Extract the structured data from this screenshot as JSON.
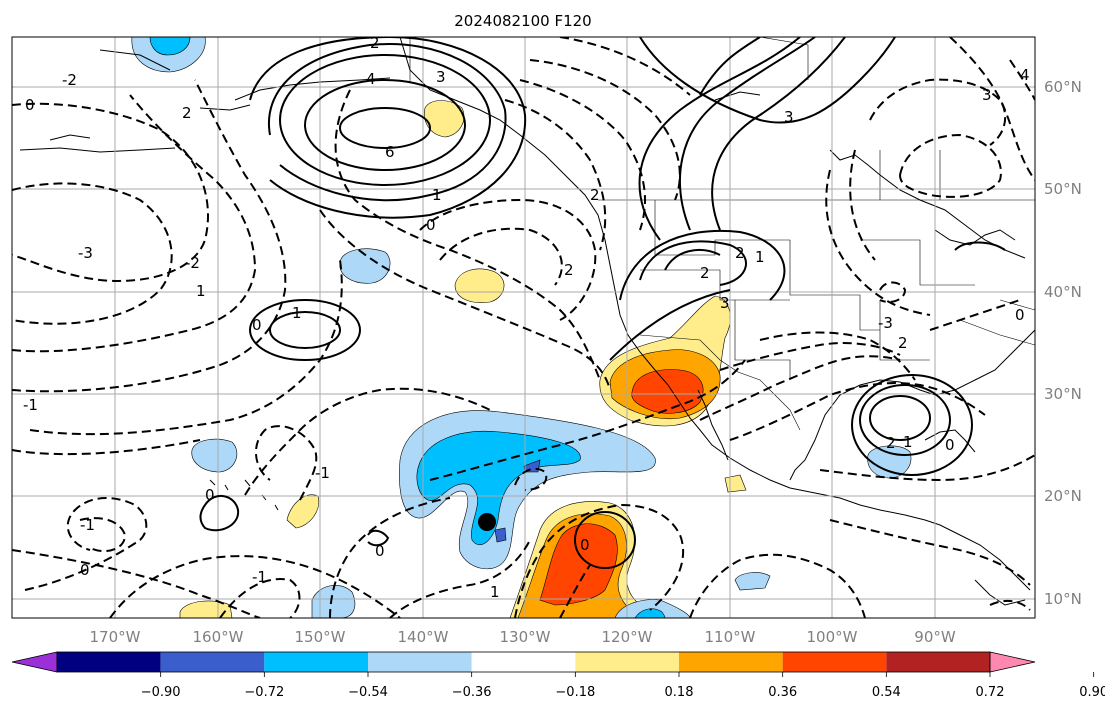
{
  "title": "2024082100 F120",
  "lon_labels": [
    "170°W",
    "160°W",
    "150°W",
    "140°W",
    "130°W",
    "120°W",
    "110°W",
    "100°W",
    "90°W"
  ],
  "lat_labels": [
    "60°N",
    "50°N",
    "40°N",
    "30°N",
    "20°N",
    "10°N"
  ],
  "colorbar": {
    "tick_labels": [
      "−0.90",
      "−0.72",
      "−0.54",
      "−0.36",
      "−0.18",
      "0.18",
      "0.36",
      "0.54",
      "0.72",
      "0.90"
    ],
    "colors": [
      "#9b30d8",
      "#000080",
      "#3a5fcd",
      "#00bfff",
      "#add8f7",
      "#ffffff",
      "#ffec8b",
      "#ffa500",
      "#ff4500",
      "#b22222",
      "#ff88b0"
    ]
  },
  "contour_labels": [
    "2",
    "4",
    "3",
    "6",
    "2",
    "1",
    "0",
    "-2",
    "-3",
    "-2",
    "1",
    "1",
    "0",
    "-1",
    "0",
    "-1",
    "1",
    "0",
    "2",
    "2",
    "3",
    "2",
    "-3",
    "2",
    "1",
    "0",
    "-1",
    "0",
    "-1",
    "0",
    "0",
    "1",
    "4",
    "3",
    "2",
    "2",
    "3",
    "0"
  ],
  "marker": {
    "lon": "134W",
    "lat": "17N",
    "color": "#000000"
  }
}
